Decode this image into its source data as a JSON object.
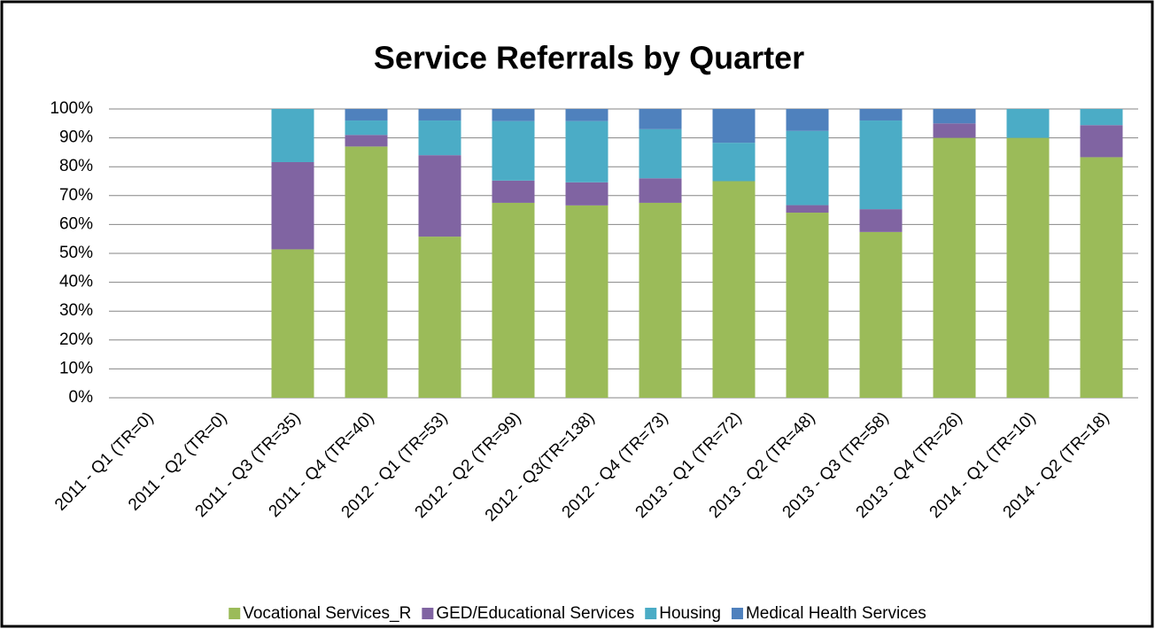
{
  "chart_data": {
    "type": "stacked_bar",
    "title": "Service Referrals by Quarter",
    "categories": [
      "2011 - Q1 (TR=0)",
      "2011 - Q2 (TR=0)",
      "2011 - Q3 (TR=35)",
      "2011 - Q4 (TR=40)",
      "2012 - Q1 (TR=53)",
      "2012 - Q2 (TR=99)",
      "2012 - Q3(TR=138)",
      "2012 - Q4 (TR=73)",
      "2013 - Q1 (TR=72)",
      "2013 - Q2 (TR=48)",
      "2013 - Q3 (TR=58)",
      "2013 - Q4 (TR=26)",
      "2014 - Q1 (TR=10)",
      "2014 - Q2 (TR=18)"
    ],
    "series": [
      {
        "name": "Vocational Services_R",
        "color": "#9bbb59",
        "values": [
          0,
          0,
          51.4,
          87,
          55.8,
          67.5,
          66.6,
          67.5,
          75,
          64.1,
          57.4,
          90,
          90,
          83.3
        ]
      },
      {
        "name": "GED/Educational Services",
        "color": "#8064a2",
        "values": [
          0,
          0,
          30.2,
          4,
          28.2,
          7.7,
          8,
          8.5,
          0,
          2.6,
          7.9,
          5,
          0,
          11.1
        ]
      },
      {
        "name": "Housing",
        "color": "#4bacc6",
        "values": [
          0,
          0,
          18.4,
          5,
          12,
          20.6,
          21.2,
          17,
          13.3,
          25.7,
          30.7,
          0,
          10,
          5.6
        ]
      },
      {
        "name": "Medical Health Services",
        "color": "#4f81bd",
        "values": [
          0,
          0,
          0,
          4,
          4,
          4.2,
          4.2,
          7,
          11.7,
          7.6,
          4,
          5,
          0,
          0
        ]
      }
    ],
    "ylim": [
      0,
      100
    ],
    "yticks": [
      {
        "value": 0,
        "label": "0%"
      },
      {
        "value": 10,
        "label": "10%"
      },
      {
        "value": 20,
        "label": "20%"
      },
      {
        "value": 30,
        "label": "30%"
      },
      {
        "value": 40,
        "label": "40%"
      },
      {
        "value": 50,
        "label": "50%"
      },
      {
        "value": 60,
        "label": "60%"
      },
      {
        "value": 70,
        "label": "70%"
      },
      {
        "value": 80,
        "label": "80%"
      },
      {
        "value": 90,
        "label": "90%"
      },
      {
        "value": 100,
        "label": "100%"
      }
    ],
    "grid": true,
    "legend": "bottom"
  }
}
